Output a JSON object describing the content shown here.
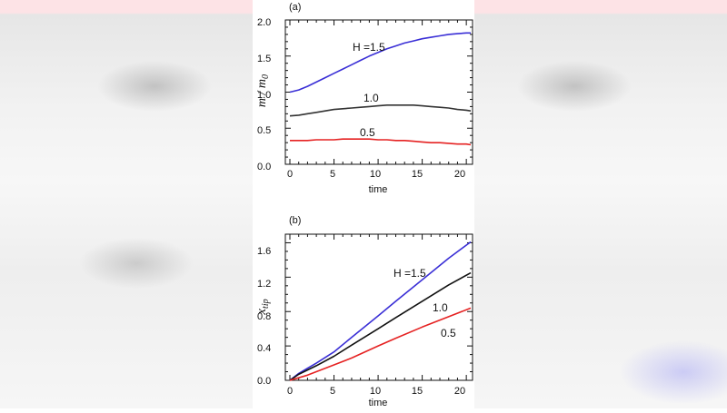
{
  "chart_data": [
    {
      "type": "line",
      "panel_label": "(a)",
      "xlabel": "time",
      "ylabel": "m / m",
      "ylabel_sub": "0",
      "xlim": [
        0,
        20.5
      ],
      "ylim": [
        0,
        2.0
      ],
      "xticks": [
        "0",
        "5",
        "10",
        "15",
        "20"
      ],
      "yticks": [
        "0.0",
        "0.5",
        "1.0",
        "1.5",
        "2.0"
      ],
      "series": [
        {
          "name": "H =1.5",
          "color": "#3a2fd6",
          "x": [
            0,
            1,
            2,
            3,
            4,
            5,
            6,
            7,
            8,
            9,
            10,
            11,
            12,
            13,
            14,
            15,
            16,
            17,
            18,
            19,
            20,
            20.5
          ],
          "y": [
            1.0,
            1.03,
            1.08,
            1.14,
            1.2,
            1.26,
            1.32,
            1.38,
            1.44,
            1.5,
            1.55,
            1.6,
            1.64,
            1.68,
            1.71,
            1.74,
            1.76,
            1.78,
            1.8,
            1.81,
            1.82,
            1.82
          ]
        },
        {
          "name": "1.0",
          "color": "#333333",
          "x": [
            0,
            1,
            2,
            3,
            4,
            5,
            6,
            7,
            8,
            9,
            10,
            11,
            12,
            13,
            14,
            15,
            16,
            17,
            18,
            19,
            20,
            20.5
          ],
          "y": [
            0.67,
            0.68,
            0.7,
            0.72,
            0.74,
            0.76,
            0.77,
            0.78,
            0.79,
            0.8,
            0.81,
            0.82,
            0.82,
            0.82,
            0.82,
            0.81,
            0.8,
            0.79,
            0.78,
            0.76,
            0.75,
            0.74
          ]
        },
        {
          "name": "0.5",
          "color": "#e52222",
          "x": [
            0,
            1,
            2,
            3,
            4,
            5,
            6,
            7,
            8,
            9,
            10,
            11,
            12,
            13,
            14,
            15,
            16,
            17,
            18,
            19,
            20,
            20.5
          ],
          "y": [
            0.33,
            0.33,
            0.33,
            0.34,
            0.34,
            0.34,
            0.35,
            0.35,
            0.35,
            0.35,
            0.34,
            0.34,
            0.33,
            0.33,
            0.32,
            0.31,
            0.3,
            0.3,
            0.29,
            0.28,
            0.28,
            0.27
          ]
        }
      ]
    },
    {
      "type": "line",
      "panel_label": "(b)",
      "xlabel": "time",
      "ylabel": "x",
      "ylabel_sub": "tip",
      "xlim": [
        0,
        20.5
      ],
      "ylim": [
        0,
        1.7
      ],
      "xticks": [
        "0",
        "5",
        "10",
        "15",
        "20"
      ],
      "yticks": [
        "0.0",
        "0.4",
        "0.8",
        "1.2",
        "1.6"
      ],
      "series": [
        {
          "name": "H =1.5",
          "color": "#3a2fd6",
          "x": [
            0,
            1,
            2,
            3,
            5,
            7,
            10,
            12,
            15,
            18,
            20.5
          ],
          "y": [
            0.0,
            0.08,
            0.14,
            0.2,
            0.33,
            0.5,
            0.75,
            0.92,
            1.17,
            1.42,
            1.61
          ]
        },
        {
          "name": "1.0",
          "color": "#111111",
          "x": [
            0,
            1,
            2,
            3,
            5,
            7,
            10,
            12,
            15,
            18,
            20.5
          ],
          "y": [
            0.0,
            0.07,
            0.12,
            0.17,
            0.28,
            0.41,
            0.6,
            0.73,
            0.92,
            1.11,
            1.25
          ]
        },
        {
          "name": "0.5",
          "color": "#e52222",
          "x": [
            0,
            1,
            2,
            3,
            5,
            7,
            10,
            12,
            15,
            18,
            20.5
          ],
          "y": [
            0.0,
            0.03,
            0.06,
            0.1,
            0.18,
            0.26,
            0.4,
            0.49,
            0.62,
            0.74,
            0.84
          ]
        }
      ]
    }
  ]
}
